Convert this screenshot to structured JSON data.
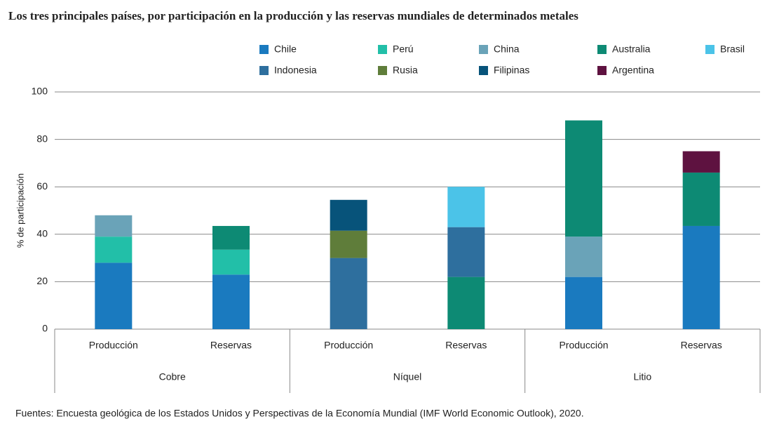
{
  "chart_data": {
    "type": "stacked-bar",
    "title": "Los tres principales países, por participación en la producción y las reservas mundiales de determinados metales",
    "y_label": "% de participación",
    "source": "Fuentes: Encuesta geológica de los Estados Unidos y Perspectivas de la Economía Mundial (IMF World Economic Outlook), 2020.",
    "categories": [
      "Producción",
      "Reservas",
      "Producción",
      "Reservas",
      "Producción",
      "Reservas"
    ],
    "groups": [
      "Cobre",
      "Níquel",
      "Litio"
    ],
    "ylim": [
      0,
      100
    ],
    "yticks": [
      0,
      20,
      40,
      60,
      80,
      100
    ],
    "grid": true,
    "series": [
      {
        "name": "Chile",
        "color": "#1a7abf",
        "values": [
          28,
          23,
          null,
          null,
          22,
          43.5
        ]
      },
      {
        "name": "Perú",
        "color": "#22bfa8",
        "values": [
          11,
          10.5,
          null,
          null,
          null,
          null
        ]
      },
      {
        "name": "China",
        "color": "#6aa3b8",
        "values": [
          9,
          null,
          null,
          null,
          17,
          null
        ]
      },
      {
        "name": "Australia",
        "color": "#0d8a74",
        "values": [
          null,
          10,
          null,
          22,
          49,
          22.5
        ]
      },
      {
        "name": "Indonesia",
        "color": "#2e6f9e",
        "values": [
          null,
          null,
          30,
          21,
          null,
          null
        ]
      },
      {
        "name": "Rusia",
        "color": "#5f7d3a",
        "values": [
          null,
          null,
          11.5,
          null,
          null,
          null
        ]
      },
      {
        "name": "Filipinas",
        "color": "#07537a",
        "values": [
          null,
          null,
          13,
          null,
          null,
          null
        ]
      },
      {
        "name": "Brasil",
        "color": "#4bc3e8",
        "values": [
          null,
          null,
          null,
          17,
          null,
          null
        ]
      },
      {
        "name": "Argentina",
        "color": "#5e1240",
        "values": [
          null,
          null,
          null,
          null,
          null,
          9
        ]
      }
    ]
  }
}
